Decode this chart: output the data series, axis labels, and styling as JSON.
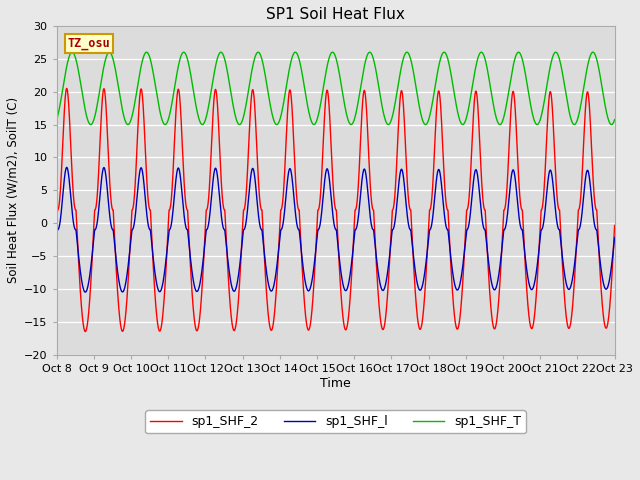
{
  "title": "SP1 Soil Heat Flux",
  "xlabel": "Time",
  "ylabel": "Soil Heat Flux (W/m2), SoilT (C)",
  "ylim": [
    -20,
    30
  ],
  "yticks": [
    -20,
    -15,
    -10,
    -5,
    0,
    5,
    10,
    15,
    20,
    25,
    30
  ],
  "xtick_labels": [
    "Oct 8",
    "Oct 9",
    "Oct 10",
    "Oct 11",
    "Oct 12",
    "Oct 13",
    "Oct 14",
    "Oct 15",
    "Oct 16",
    "Oct 17",
    "Oct 18",
    "Oct 19",
    "Oct 20",
    "Oct 21",
    "Oct 22",
    "Oct 23"
  ],
  "color_red": "#FF0000",
  "color_blue": "#0000BB",
  "color_green": "#00BB00",
  "fig_bg": "#E8E8E8",
  "plot_bg": "#DCDCDC",
  "legend_labels": [
    "sp1_SHF_2",
    "sp1_SHF_l",
    "sp1_SHF_T"
  ],
  "tz_label": "TZ_osu",
  "period_hours": 24,
  "red_amplitude": 18.5,
  "red_mean": 2.0,
  "red_phase_peak_hour": 6.5,
  "blue_amplitude": 9.5,
  "blue_mean": -1.0,
  "blue_phase_peak_hour": 6.5,
  "green_amplitude": 5.5,
  "green_mean": 20.5,
  "green_phase_peak_hour": 10.0,
  "sharpness": 2.5
}
